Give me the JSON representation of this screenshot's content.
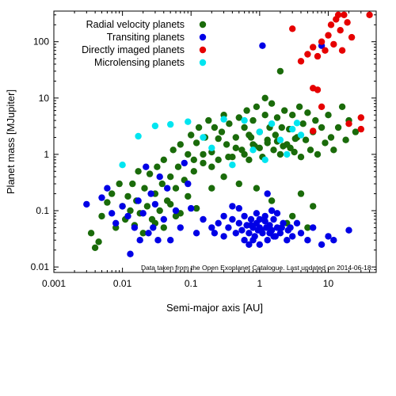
{
  "chart_data": {
    "type": "scatter",
    "title": "",
    "xlabel": "Semi-major axis [AU]",
    "ylabel": "Planet mass [MJupiter]",
    "xscale": "log",
    "yscale": "log",
    "xlim": [
      0.001,
      50
    ],
    "ylim": [
      0.008,
      350
    ],
    "x_ticks": [
      0.001,
      0.01,
      0.1,
      1,
      10
    ],
    "x_tick_labels": [
      "0.001",
      "0.01",
      "0.1",
      "1",
      "10"
    ],
    "y_ticks": [
      0.01,
      0.1,
      1,
      10,
      100
    ],
    "y_tick_labels": [
      "0.01",
      "0.1",
      "1",
      "10",
      "100"
    ],
    "grid": false,
    "legend_position": "top-left",
    "annotation": "Data taken from the Open Exoplanet Catalogue. Last updated on 2014-06-18.",
    "series": [
      {
        "name": "Radial velocity planets",
        "color": "#1a6b0a",
        "points": [
          [
            0.0035,
            0.04
          ],
          [
            0.004,
            0.022
          ],
          [
            0.0045,
            0.028
          ],
          [
            0.005,
            0.08
          ],
          [
            0.006,
            0.14
          ],
          [
            0.007,
            0.2
          ],
          [
            0.008,
            0.05
          ],
          [
            0.009,
            0.3
          ],
          [
            0.01,
            0.12
          ],
          [
            0.011,
            0.07
          ],
          [
            0.012,
            0.18
          ],
          [
            0.013,
            0.1
          ],
          [
            0.014,
            0.3
          ],
          [
            0.015,
            0.055
          ],
          [
            0.016,
            0.15
          ],
          [
            0.017,
            0.5
          ],
          [
            0.018,
            0.09
          ],
          [
            0.02,
            0.04
          ],
          [
            0.021,
            0.25
          ],
          [
            0.023,
            0.12
          ],
          [
            0.025,
            0.45
          ],
          [
            0.027,
            0.07
          ],
          [
            0.03,
            0.2
          ],
          [
            0.032,
            0.6
          ],
          [
            0.035,
            0.1
          ],
          [
            0.038,
            0.3
          ],
          [
            0.04,
            0.8
          ],
          [
            0.045,
            0.15
          ],
          [
            0.05,
            0.4
          ],
          [
            0.055,
            1.2
          ],
          [
            0.06,
            0.25
          ],
          [
            0.065,
            0.6
          ],
          [
            0.07,
            1.5
          ],
          [
            0.08,
            0.35
          ],
          [
            0.09,
            1.0
          ],
          [
            0.1,
            2.2
          ],
          [
            0.11,
            0.5
          ],
          [
            0.12,
            1.6
          ],
          [
            0.13,
            3.0
          ],
          [
            0.15,
            0.7
          ],
          [
            0.16,
            2.0
          ],
          [
            0.18,
            4.0
          ],
          [
            0.2,
            1.1
          ],
          [
            0.22,
            3.0
          ],
          [
            0.25,
            0.8
          ],
          [
            0.28,
            2.5
          ],
          [
            0.3,
            5.0
          ],
          [
            0.33,
            1.5
          ],
          [
            0.36,
            3.5
          ],
          [
            0.4,
            0.9
          ],
          [
            0.45,
            2.0
          ],
          [
            0.5,
            4.5
          ],
          [
            0.55,
            1.2
          ],
          [
            0.6,
            3.0
          ],
          [
            0.65,
            6.0
          ],
          [
            0.7,
            0.8
          ],
          [
            0.75,
            2.0
          ],
          [
            0.8,
            4.0
          ],
          [
            0.85,
            1.4
          ],
          [
            0.9,
            7.0
          ],
          [
            1.0,
            2.5
          ],
          [
            1.1,
            0.9
          ],
          [
            1.2,
            5.0
          ],
          [
            1.3,
            1.8
          ],
          [
            1.4,
            3.0
          ],
          [
            1.5,
            8.0
          ],
          [
            1.6,
            1.2
          ],
          [
            1.7,
            2.2
          ],
          [
            1.8,
            4.5
          ],
          [
            2.0,
            1.0
          ],
          [
            2.1,
            3.0
          ],
          [
            2.3,
            6.0
          ],
          [
            2.5,
            1.5
          ],
          [
            2.7,
            2.8
          ],
          [
            3.0,
            5.0
          ],
          [
            3.2,
            1.1
          ],
          [
            3.5,
            2.0
          ],
          [
            3.8,
            7.0
          ],
          [
            4.0,
            0.9
          ],
          [
            4.3,
            3.5
          ],
          [
            4.7,
            1.8
          ],
          [
            5.0,
            5.5
          ],
          [
            5.5,
            1.2
          ],
          [
            6.0,
            2.5
          ],
          [
            6.5,
            4.0
          ],
          [
            7.0,
            1.0
          ],
          [
            8.0,
            3.0
          ],
          [
            9.0,
            1.6
          ],
          [
            10.0,
            5.0
          ],
          [
            11.0,
            2.0
          ],
          [
            12.0,
            1.2
          ],
          [
            14.0,
            3.0
          ],
          [
            16.0,
            7.0
          ],
          [
            18.0,
            1.8
          ],
          [
            20.0,
            4.0
          ],
          [
            25.0,
            2.5
          ],
          [
            2.0,
            30.0
          ],
          [
            1.2,
            10.0
          ],
          [
            0.9,
            0.25
          ],
          [
            1.5,
            0.15
          ],
          [
            3.0,
            0.08
          ],
          [
            5.0,
            0.05
          ],
          [
            4.0,
            0.2
          ],
          [
            6.0,
            0.12
          ],
          [
            2.5,
            0.06
          ],
          [
            0.2,
            0.6
          ],
          [
            0.3,
            0.4
          ],
          [
            0.5,
            0.3
          ],
          [
            0.6,
            1.0
          ],
          [
            0.07,
            0.09
          ],
          [
            0.03,
            0.06
          ],
          [
            0.05,
            0.13
          ],
          [
            0.04,
            0.05
          ],
          [
            0.06,
            0.08
          ],
          [
            0.09,
            0.18
          ],
          [
            0.12,
            0.11
          ],
          [
            0.2,
            0.25
          ],
          [
            0.35,
            0.9
          ],
          [
            0.8,
            1.5
          ],
          [
            1.0,
            1.3
          ],
          [
            1.3,
            1.6
          ],
          [
            1.8,
            1.7
          ],
          [
            2.2,
            1.4
          ],
          [
            2.8,
            1.3
          ],
          [
            3.3,
            1.9
          ],
          [
            0.7,
            2.2
          ],
          [
            0.45,
            1.3
          ],
          [
            0.25,
            1.9
          ],
          [
            0.15,
            1.0
          ],
          [
            0.11,
            0.8
          ]
        ]
      },
      {
        "name": "Transiting planets",
        "color": "#0000e6",
        "points": [
          [
            0.003,
            0.13
          ],
          [
            0.005,
            0.17
          ],
          [
            0.006,
            0.25
          ],
          [
            0.007,
            0.09
          ],
          [
            0.008,
            0.06
          ],
          [
            0.01,
            0.12
          ],
          [
            0.012,
            0.08
          ],
          [
            0.013,
            0.017
          ],
          [
            0.015,
            0.05
          ],
          [
            0.017,
            0.15
          ],
          [
            0.018,
            0.03
          ],
          [
            0.02,
            0.09
          ],
          [
            0.022,
            0.6
          ],
          [
            0.024,
            0.04
          ],
          [
            0.026,
            0.2
          ],
          [
            0.028,
            0.05
          ],
          [
            0.03,
            0.13
          ],
          [
            0.033,
            0.03
          ],
          [
            0.035,
            0.4
          ],
          [
            0.04,
            0.07
          ],
          [
            0.045,
            0.25
          ],
          [
            0.05,
            0.03
          ],
          [
            0.06,
            0.1
          ],
          [
            0.07,
            0.05
          ],
          [
            0.08,
            0.7
          ],
          [
            0.09,
            0.3
          ],
          [
            0.1,
            0.11
          ],
          [
            0.12,
            0.04
          ],
          [
            0.15,
            0.07
          ],
          [
            0.2,
            0.05
          ],
          [
            0.22,
            0.04
          ],
          [
            0.25,
            0.06
          ],
          [
            0.3,
            0.035
          ],
          [
            0.35,
            0.05
          ],
          [
            0.4,
            0.07
          ],
          [
            0.45,
            0.04
          ],
          [
            0.5,
            0.06
          ],
          [
            0.55,
            0.045
          ],
          [
            0.6,
            0.03
          ],
          [
            0.65,
            0.055
          ],
          [
            0.7,
            0.04
          ],
          [
            0.75,
            0.07
          ],
          [
            0.8,
            0.05
          ],
          [
            0.85,
            0.035
          ],
          [
            0.9,
            0.06
          ],
          [
            0.95,
            0.045
          ],
          [
            1.0,
            0.05
          ],
          [
            1.1,
            0.04
          ],
          [
            1.2,
            0.065
          ],
          [
            1.3,
            0.03
          ],
          [
            1.4,
            0.055
          ],
          [
            1.5,
            0.045
          ],
          [
            1.6,
            0.07
          ],
          [
            1.7,
            0.035
          ],
          [
            1.8,
            0.05
          ],
          [
            2.0,
            0.04
          ],
          [
            2.2,
            0.06
          ],
          [
            2.5,
            0.03
          ],
          [
            2.8,
            0.05
          ],
          [
            3.0,
            0.035
          ],
          [
            3.5,
            0.06
          ],
          [
            4.0,
            0.04
          ],
          [
            5.0,
            0.03
          ],
          [
            6.0,
            0.05
          ],
          [
            8.0,
            0.025
          ],
          [
            10.0,
            0.035
          ],
          [
            12.0,
            0.03
          ],
          [
            20.0,
            0.045
          ],
          [
            1.0,
            0.025
          ],
          [
            0.7,
            0.025
          ],
          [
            0.9,
            0.09
          ],
          [
            1.2,
            0.08
          ],
          [
            1.5,
            0.1
          ],
          [
            0.6,
            0.08
          ],
          [
            0.5,
            0.11
          ],
          [
            1.8,
            0.09
          ],
          [
            1.3,
            0.2
          ],
          [
            1.1,
            85.0
          ],
          [
            8.0,
            85.0
          ],
          [
            0.3,
            0.08
          ],
          [
            0.4,
            0.12
          ],
          [
            0.8,
            0.03
          ],
          [
            1.0,
            0.07
          ],
          [
            1.4,
            0.04
          ],
          [
            0.75,
            0.055
          ],
          [
            1.05,
            0.045
          ],
          [
            1.25,
            0.05
          ],
          [
            1.6,
            0.035
          ],
          [
            2.1,
            0.05
          ],
          [
            2.6,
            0.045
          ]
        ]
      },
      {
        "name": "Directly imaged planets",
        "color": "#e60000",
        "points": [
          [
            3.0,
            170.0
          ],
          [
            4.0,
            45.0
          ],
          [
            5.0,
            60.0
          ],
          [
            6.0,
            80.0
          ],
          [
            7.0,
            55.0
          ],
          [
            8.0,
            100.0
          ],
          [
            9.0,
            70.0
          ],
          [
            10.0,
            130.0
          ],
          [
            11.0,
            200.0
          ],
          [
            12.0,
            90.0
          ],
          [
            13.0,
            250.0
          ],
          [
            14.0,
            300.0
          ],
          [
            15.0,
            160.0
          ],
          [
            17.0,
            300.0
          ],
          [
            19.0,
            220.0
          ],
          [
            22.0,
            120.0
          ],
          [
            40.0,
            300.0
          ],
          [
            30.0,
            4.5
          ],
          [
            30.0,
            2.8
          ],
          [
            20.0,
            3.5
          ],
          [
            6.0,
            15.0
          ],
          [
            7.0,
            14.0
          ],
          [
            8.0,
            7.0
          ],
          [
            6.0,
            2.6
          ],
          [
            16.0,
            70.0
          ]
        ]
      },
      {
        "name": "Microlensing planets",
        "color": "#00e5f0",
        "points": [
          [
            0.01,
            0.65
          ],
          [
            0.017,
            2.1
          ],
          [
            0.03,
            3.2
          ],
          [
            0.05,
            3.4
          ],
          [
            0.09,
            3.8
          ],
          [
            0.15,
            2.0
          ],
          [
            0.2,
            1.3
          ],
          [
            0.3,
            4.2
          ],
          [
            0.6,
            4.0
          ],
          [
            1.0,
            2.5
          ],
          [
            1.5,
            3.5
          ],
          [
            2.0,
            1.8
          ],
          [
            3.0,
            2.8
          ],
          [
            3.5,
            3.6
          ],
          [
            4.0,
            2.2
          ],
          [
            0.8,
            1.2
          ],
          [
            2.5,
            1.0
          ],
          [
            0.4,
            0.65
          ],
          [
            1.2,
            0.8
          ]
        ]
      }
    ]
  }
}
